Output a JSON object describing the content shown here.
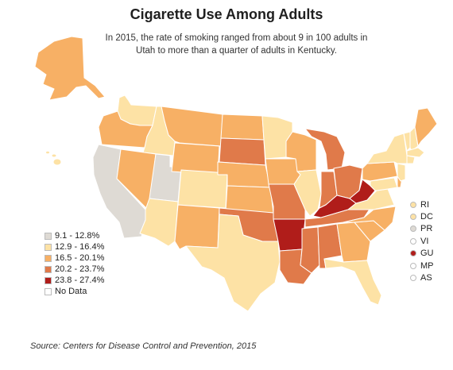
{
  "title": "Cigarette Use Among Adults",
  "subtitle": "In 2015, the rate of smoking ranged from about 9 in 100 adults in Utah to more than a quarter of adults in Kentucky.",
  "colors": {
    "bin1": "#dedad4",
    "bin2": "#fde2a5",
    "bin3": "#f7b065",
    "bin4": "#e07a4a",
    "bin5": "#b01d1a",
    "nodata": "#ffffff",
    "border": "#ffffff"
  },
  "legend": [
    {
      "label": "9.1 - 12.8%",
      "bin": "bin1"
    },
    {
      "label": "12.9 - 16.4%",
      "bin": "bin2"
    },
    {
      "label": "16.5 - 20.1%",
      "bin": "bin3"
    },
    {
      "label": "20.2 - 23.7%",
      "bin": "bin4"
    },
    {
      "label": "23.8 - 27.4%",
      "bin": "bin5"
    },
    {
      "label": "No Data",
      "bin": "nodata"
    }
  ],
  "territories": [
    {
      "label": "RI",
      "bin": "bin2"
    },
    {
      "label": "DC",
      "bin": "bin2"
    },
    {
      "label": "PR",
      "bin": "bin1"
    },
    {
      "label": "VI",
      "bin": "nodata"
    },
    {
      "label": "GU",
      "bin": "bin5"
    },
    {
      "label": "MP",
      "bin": "nodata"
    },
    {
      "label": "AS",
      "bin": "nodata"
    }
  ],
  "states": {
    "WA": "bin2",
    "OR": "bin3",
    "ID": "bin2",
    "MT": "bin3",
    "WY": "bin3",
    "CA": "bin1",
    "NV": "bin3",
    "UT": "bin1",
    "AZ": "bin2",
    "CO": "bin2",
    "NM": "bin3",
    "ND": "bin3",
    "SD": "bin4",
    "NE": "bin3",
    "KS": "bin3",
    "OK": "bin4",
    "TX": "bin2",
    "MN": "bin2",
    "IA": "bin3",
    "MO": "bin4",
    "AR": "bin5",
    "LA": "bin4",
    "WI": "bin3",
    "IL": "bin2",
    "MI": "bin4",
    "IN": "bin4",
    "OH": "bin4",
    "KY": "bin5",
    "TN": "bin4",
    "MS": "bin4",
    "AL": "bin4",
    "GA": "bin3",
    "FL": "bin2",
    "SC": "bin3",
    "NC": "bin3",
    "VA": "bin2",
    "WV": "bin5",
    "PA": "bin3",
    "NY": "bin2",
    "VT": "bin2",
    "NH": "bin2",
    "ME": "bin3",
    "MA": "bin2",
    "CT": "bin2",
    "NJ": "bin2",
    "DE": "bin3",
    "MD": "bin2",
    "AK": "bin3",
    "HI": "bin2"
  },
  "source": "Source: Centers for Disease Control and Prevention, 2015"
}
